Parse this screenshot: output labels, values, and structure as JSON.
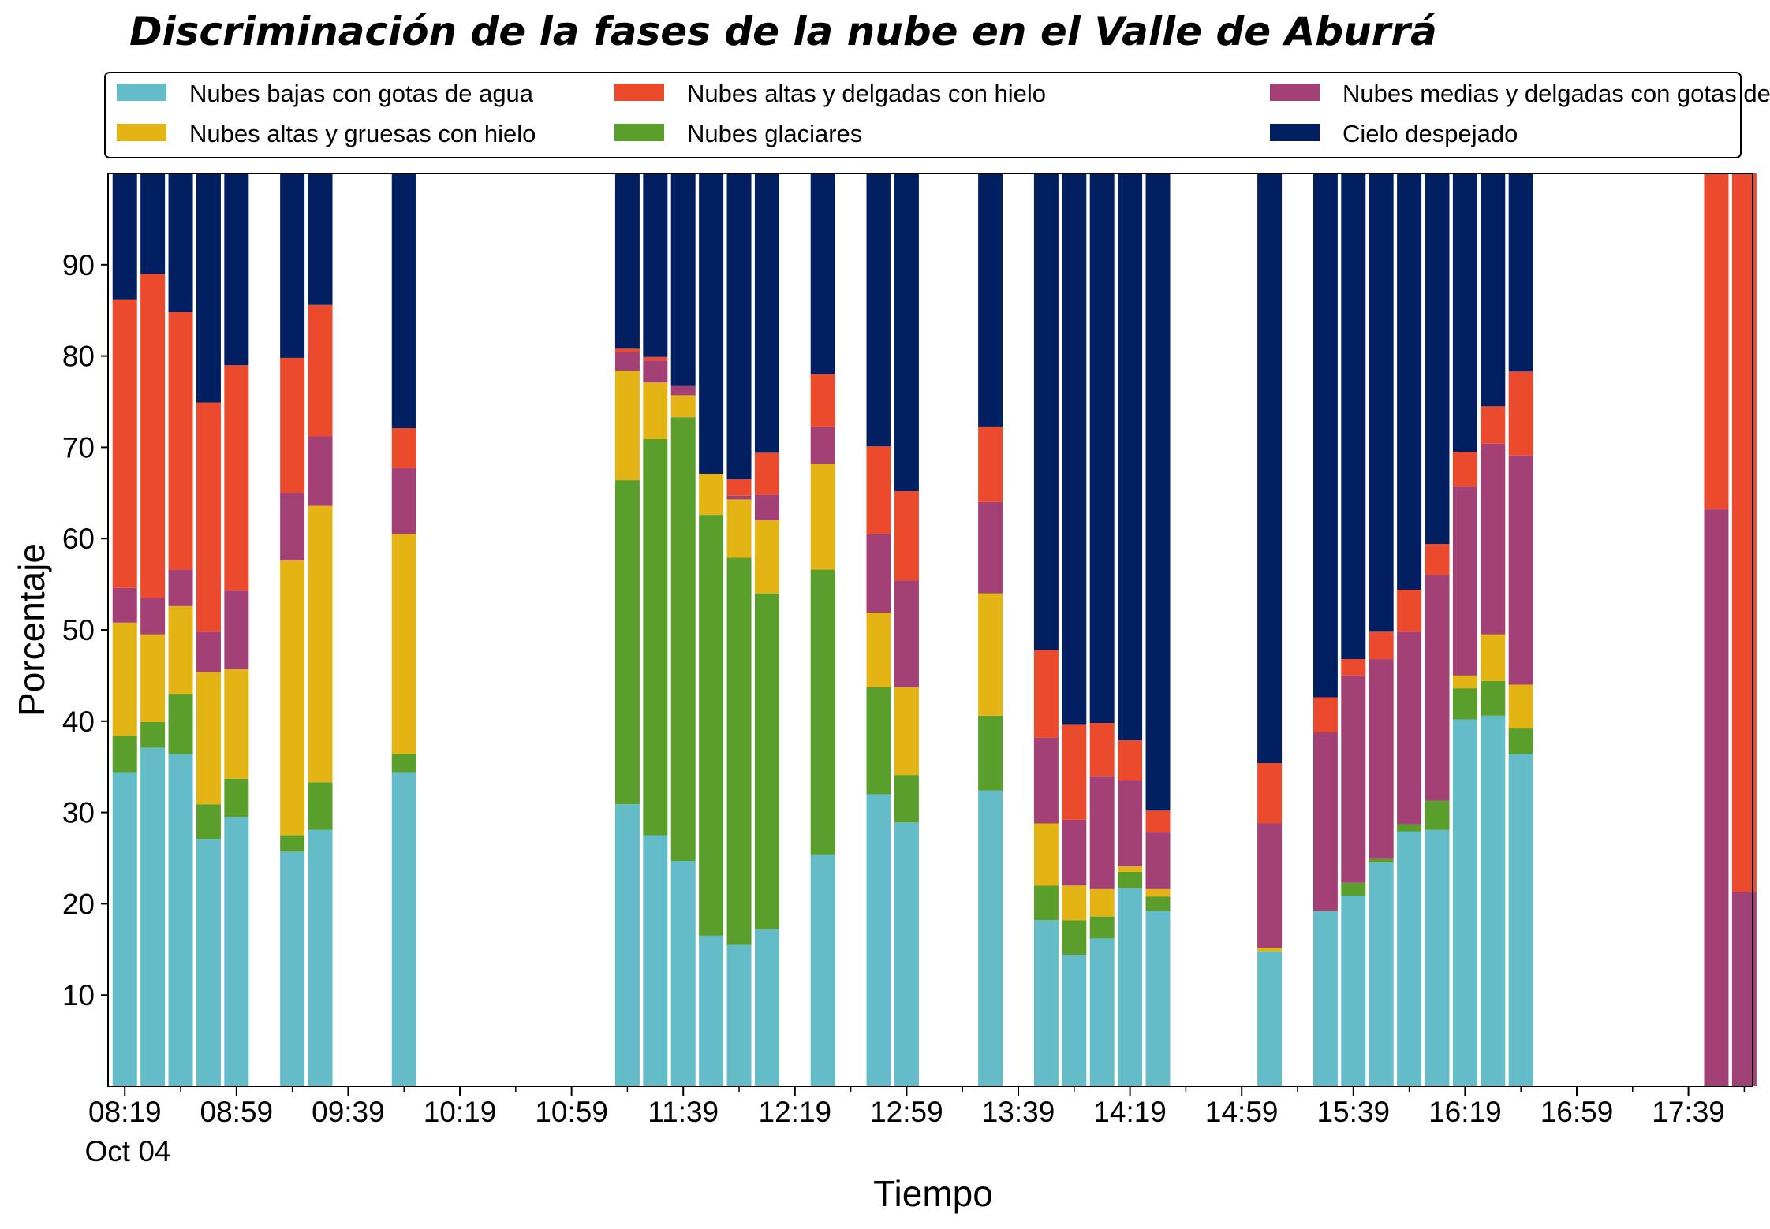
{
  "chart_data": {
    "type": "bar",
    "stacked": true,
    "title": "Discriminación de la fases de la nube en el Valle de Aburrá",
    "xlabel": "Tiempo",
    "ylabel": "Porcentaje",
    "date_label": "Oct 04",
    "ylim": [
      0,
      100
    ],
    "yticks": [
      10,
      20,
      30,
      40,
      50,
      60,
      70,
      80,
      90
    ],
    "xlim": [
      "08:13",
      "18:02"
    ],
    "xticks": [
      "08:19",
      "08:59",
      "09:39",
      "10:19",
      "10:59",
      "11:39",
      "12:19",
      "12:59",
      "13:39",
      "14:19",
      "14:59",
      "15:39",
      "16:19",
      "16:59",
      "17:39"
    ],
    "legend_placement": "top, above plot, 3 columns",
    "grid": false,
    "series": [
      {
        "name": "Nubes bajas con gotas de agua",
        "color": "#64BCC8"
      },
      {
        "name": "Nubes glaciares",
        "color": "#5A9E2C"
      },
      {
        "name": "Nubes altas y gruesas con hielo",
        "color": "#E3B414"
      },
      {
        "name": "Nubes medias y delgadas con gotas de agua",
        "color": "#A34177"
      },
      {
        "name": "Nubes altas y delgadas con hielo",
        "color": "#EC4A2D"
      },
      {
        "name": "Cielo despejado",
        "color": "#022061"
      }
    ],
    "legend_order": [
      0,
      2,
      4,
      1,
      3,
      5
    ],
    "bars": [
      {
        "time": "08:19",
        "values": [
          34.4,
          4.0,
          12.4,
          3.8,
          31.6,
          13.8
        ]
      },
      {
        "time": "08:29",
        "values": [
          37.1,
          2.8,
          9.6,
          4.0,
          35.5,
          11.0
        ]
      },
      {
        "time": "08:39",
        "values": [
          36.4,
          6.6,
          9.6,
          4.0,
          28.2,
          15.2
        ]
      },
      {
        "time": "08:49",
        "values": [
          27.1,
          3.8,
          14.5,
          4.4,
          25.1,
          25.1
        ]
      },
      {
        "time": "08:59",
        "values": [
          29.5,
          4.2,
          12.0,
          8.6,
          24.7,
          21.0
        ]
      },
      {
        "time": "09:19",
        "values": [
          25.7,
          1.8,
          30.1,
          7.4,
          14.8,
          20.2
        ]
      },
      {
        "time": "09:29",
        "values": [
          28.1,
          5.2,
          30.3,
          7.6,
          14.4,
          14.4
        ]
      },
      {
        "time": "09:59",
        "values": [
          34.4,
          2.0,
          24.1,
          7.2,
          4.4,
          27.9
        ]
      },
      {
        "time": "11:19",
        "values": [
          30.9,
          35.5,
          12.0,
          2.0,
          0.4,
          19.2
        ]
      },
      {
        "time": "11:29",
        "values": [
          27.5,
          43.4,
          6.2,
          2.4,
          0.4,
          20.1
        ]
      },
      {
        "time": "11:39",
        "values": [
          24.7,
          48.6,
          2.4,
          1.0,
          0.0,
          23.3
        ]
      },
      {
        "time": "11:49",
        "values": [
          16.5,
          46.1,
          4.5,
          0.0,
          0.0,
          32.9
        ]
      },
      {
        "time": "11:59",
        "values": [
          15.5,
          42.4,
          6.4,
          0.4,
          1.8,
          33.5
        ]
      },
      {
        "time": "12:09",
        "values": [
          17.2,
          36.8,
          8.0,
          2.8,
          4.6,
          30.6
        ]
      },
      {
        "time": "12:29",
        "values": [
          25.4,
          31.2,
          11.6,
          4.0,
          5.8,
          22.0
        ]
      },
      {
        "time": "12:49",
        "values": [
          32.0,
          11.7,
          8.2,
          8.6,
          9.6,
          29.9
        ]
      },
      {
        "time": "12:59",
        "values": [
          28.9,
          5.2,
          9.6,
          11.7,
          9.8,
          34.8
        ]
      },
      {
        "time": "13:29",
        "values": [
          32.4,
          8.2,
          13.4,
          10.0,
          8.2,
          27.8
        ]
      },
      {
        "time": "13:49",
        "values": [
          18.2,
          3.8,
          6.8,
          9.4,
          9.6,
          52.2
        ]
      },
      {
        "time": "13:59",
        "values": [
          14.4,
          3.8,
          3.8,
          7.2,
          10.4,
          60.4
        ]
      },
      {
        "time": "14:09",
        "values": [
          16.2,
          2.4,
          3.0,
          12.4,
          5.8,
          60.2
        ]
      },
      {
        "time": "14:19",
        "values": [
          21.7,
          1.8,
          0.6,
          9.4,
          4.4,
          62.1
        ]
      },
      {
        "time": "14:29",
        "values": [
          19.2,
          1.6,
          0.8,
          6.2,
          2.4,
          69.8
        ]
      },
      {
        "time": "15:09",
        "values": [
          14.8,
          0.0,
          0.4,
          13.6,
          6.6,
          64.6
        ]
      },
      {
        "time": "15:29",
        "values": [
          19.2,
          0.0,
          0.0,
          19.6,
          3.8,
          57.4
        ]
      },
      {
        "time": "15:39",
        "values": [
          20.9,
          1.4,
          0.0,
          22.7,
          1.8,
          53.2
        ]
      },
      {
        "time": "15:49",
        "values": [
          24.5,
          0.4,
          0.0,
          21.9,
          3.0,
          50.2
        ]
      },
      {
        "time": "15:59",
        "values": [
          27.9,
          0.8,
          0.0,
          21.1,
          4.6,
          45.6
        ]
      },
      {
        "time": "16:09",
        "values": [
          28.1,
          3.2,
          0.0,
          24.7,
          3.4,
          40.6
        ]
      },
      {
        "time": "16:19",
        "values": [
          40.2,
          3.4,
          1.4,
          20.7,
          3.8,
          30.5
        ]
      },
      {
        "time": "16:29",
        "values": [
          40.6,
          3.8,
          5.1,
          20.9,
          4.1,
          25.5
        ]
      },
      {
        "time": "16:39",
        "values": [
          36.4,
          2.8,
          4.8,
          25.1,
          9.2,
          21.7
        ]
      },
      {
        "time": "17:49",
        "values": [
          0.0,
          0.0,
          0.0,
          63.2,
          36.8,
          0.0
        ]
      },
      {
        "time": "17:59",
        "values": [
          0.0,
          0.0,
          0.0,
          21.3,
          78.7,
          0.0
        ]
      }
    ]
  }
}
